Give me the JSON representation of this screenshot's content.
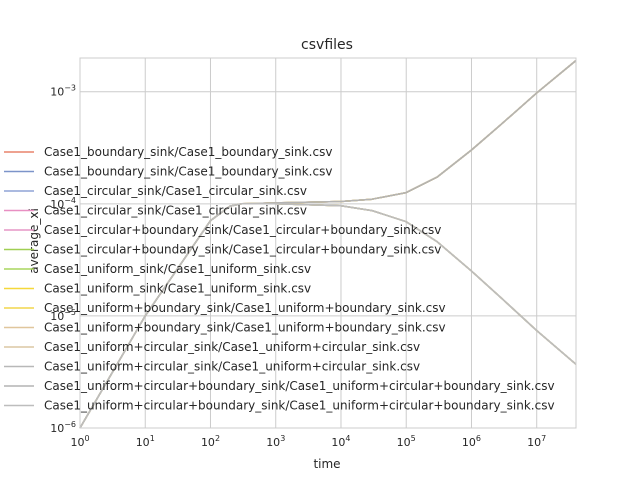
{
  "chart_data": {
    "type": "line",
    "title": "csvfiles",
    "xlabel": "time",
    "ylabel": "average_xi",
    "xscale": "log",
    "yscale": "log",
    "xlim": [
      1,
      40000000
    ],
    "ylim": [
      1e-06,
      0.002
    ],
    "grid": true,
    "legend_position": "center-left",
    "x_ticks": [
      {
        "base": "10",
        "exp": "0",
        "value": 1
      },
      {
        "base": "10",
        "exp": "1",
        "value": 10
      },
      {
        "base": "10",
        "exp": "2",
        "value": 100
      },
      {
        "base": "10",
        "exp": "3",
        "value": 1000
      },
      {
        "base": "10",
        "exp": "4",
        "value": 10000
      },
      {
        "base": "10",
        "exp": "5",
        "value": 100000
      },
      {
        "base": "10",
        "exp": "6",
        "value": 1000000
      },
      {
        "base": "10",
        "exp": "7",
        "value": 10000000
      }
    ],
    "y_ticks": [
      {
        "base": "10",
        "exp": "−6",
        "value": 1e-06
      },
      {
        "base": "10",
        "exp": "−5",
        "value": 1e-05
      },
      {
        "base": "10",
        "exp": "−4",
        "value": 0.0001
      },
      {
        "base": "10",
        "exp": "−3",
        "value": 0.001
      }
    ],
    "curve_x": [
      1,
      10,
      100,
      200,
      300,
      1000,
      10000,
      30000,
      100000,
      300000,
      1000000,
      3000000,
      10000000,
      40000000
    ],
    "rising_y": [
      1e-06,
      1e-05,
      7.08e-05,
      9.55e-05,
      0.0001,
      0.000102,
      0.000105,
      0.00011,
      0.000126,
      0.000174,
      0.000302,
      0.000525,
      0.000977,
      0.0019
    ],
    "falling_y": [
      1e-06,
      1e-05,
      7.08e-05,
      9.55e-05,
      0.0001,
      0.0001,
      9.6e-05,
      8.7e-05,
      6.92e-05,
      4.57e-05,
      2.51e-05,
      1.41e-05,
      7.4e-06,
      3.7e-06
    ],
    "series": [
      {
        "name": "Case1_boundary_sink/Case1_boundary_sink.csv",
        "color": "#e8836b",
        "shape": "rising"
      },
      {
        "name": "Case1_boundary_sink/Case1_boundary_sink.csv",
        "color": "#7c94c9",
        "shape": "falling"
      },
      {
        "name": "Case1_circular_sink/Case1_circular_sink.csv",
        "color": "#8fa3d6",
        "shape": "rising"
      },
      {
        "name": "Case1_circular_sink/Case1_circular_sink.csv",
        "color": "#e88fc2",
        "shape": "falling"
      },
      {
        "name": "Case1_circular+boundary_sink/Case1_circular+boundary_sink.csv",
        "color": "#e596c6",
        "shape": "rising"
      },
      {
        "name": "Case1_circular+boundary_sink/Case1_circular+boundary_sink.csv",
        "color": "#a0cf52",
        "shape": "falling"
      },
      {
        "name": "Case1_uniform_sink/Case1_uniform_sink.csv",
        "color": "#a9d65e",
        "shape": "rising"
      },
      {
        "name": "Case1_uniform_sink/Case1_uniform_sink.csv",
        "color": "#f5d83a",
        "shape": "falling"
      },
      {
        "name": "Case1_uniform+boundary_sink/Case1_uniform+boundary_sink.csv",
        "color": "#f2d64b",
        "shape": "rising"
      },
      {
        "name": "Case1_uniform+boundary_sink/Case1_uniform+boundary_sink.csv",
        "color": "#e0c69c",
        "shape": "falling"
      },
      {
        "name": "Case1_uniform+circular_sink/Case1_uniform+circular_sink.csv",
        "color": "#dcc7a4",
        "shape": "rising"
      },
      {
        "name": "Case1_uniform+circular_sink/Case1_uniform+circular_sink.csv",
        "color": "#b8b8b8",
        "shape": "falling"
      },
      {
        "name": "Case1_uniform+circular+boundary_sink/Case1_uniform+circular+boundary_sink.csv",
        "color": "#b3b3b3",
        "shape": "rising"
      },
      {
        "name": "Case1_uniform+circular+boundary_sink/Case1_uniform+circular+boundary_sink.csv",
        "color": "#bdbdbd",
        "shape": "falling"
      }
    ]
  }
}
